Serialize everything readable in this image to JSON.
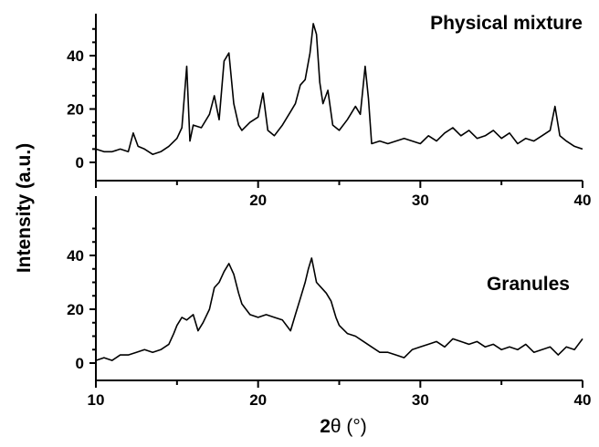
{
  "chart_data": [
    {
      "type": "line",
      "panel": "top",
      "label": "Physical mixture",
      "xlim": [
        10,
        40
      ],
      "ylim": [
        -2,
        55
      ],
      "x_ticks": [
        20,
        30,
        40
      ],
      "y_ticks": [
        0,
        20,
        40
      ],
      "grid": false,
      "series": [
        {
          "name": "Physical mixture",
          "x": [
            10,
            10.5,
            11,
            11.5,
            12,
            12.3,
            12.6,
            13,
            13.5,
            14,
            14.5,
            15,
            15.3,
            15.6,
            15.8,
            16,
            16.5,
            17,
            17.3,
            17.6,
            17.9,
            18.2,
            18.5,
            18.8,
            19,
            19.5,
            20,
            20.3,
            20.6,
            21,
            21.5,
            22,
            22.3,
            22.6,
            22.9,
            23.2,
            23.4,
            23.6,
            23.8,
            24,
            24.3,
            24.6,
            25,
            25.5,
            26,
            26.3,
            26.6,
            26.8,
            27,
            27.5,
            28,
            29,
            30,
            30.5,
            31,
            31.5,
            32,
            32.5,
            33,
            33.5,
            34,
            34.5,
            35,
            35.5,
            36,
            36.5,
            37,
            37.5,
            38,
            38.3,
            38.6,
            39,
            39.5,
            40
          ],
          "values": [
            5,
            4,
            4,
            5,
            4,
            11,
            6,
            5,
            3,
            4,
            6,
            9,
            13,
            36,
            8,
            14,
            13,
            18,
            25,
            16,
            38,
            41,
            22,
            14,
            12,
            15,
            17,
            26,
            12,
            10,
            14,
            19,
            22,
            29,
            31,
            41,
            52,
            48,
            30,
            22,
            27,
            14,
            12,
            16,
            21,
            18,
            36,
            24,
            7,
            8,
            7,
            9,
            7,
            10,
            8,
            11,
            13,
            10,
            12,
            9,
            10,
            12,
            9,
            11,
            7,
            9,
            8,
            10,
            12,
            21,
            10,
            8,
            6,
            5
          ]
        }
      ]
    },
    {
      "type": "line",
      "panel": "bottom",
      "label": "Granules",
      "xlim": [
        10,
        40
      ],
      "ylim": [
        -2,
        55
      ],
      "x_ticks": [
        10,
        20,
        30,
        40
      ],
      "y_ticks": [
        0,
        20,
        40
      ],
      "grid": false,
      "xlabel": "2θ (°)",
      "series": [
        {
          "name": "Granules",
          "x": [
            10,
            10.5,
            11,
            11.5,
            12,
            12.5,
            13,
            13.5,
            14,
            14.5,
            14.8,
            15,
            15.3,
            15.6,
            16,
            16.3,
            16.6,
            17,
            17.3,
            17.6,
            17.9,
            18.2,
            18.5,
            18.8,
            19,
            19.5,
            20,
            20.5,
            21,
            21.5,
            22,
            22.3,
            22.6,
            22.9,
            23.1,
            23.3,
            23.6,
            23.9,
            24.2,
            24.5,
            24.8,
            25,
            25.5,
            26,
            26.5,
            27,
            27.5,
            28,
            28.5,
            29,
            29.5,
            30,
            30.5,
            31,
            31.5,
            32,
            32.5,
            33,
            33.5,
            34,
            34.5,
            35,
            35.5,
            36,
            36.5,
            37,
            37.5,
            38,
            38.5,
            39,
            39.5,
            40
          ],
          "values": [
            1,
            2,
            1,
            3,
            3,
            4,
            5,
            4,
            5,
            7,
            11,
            14,
            17,
            16,
            18,
            12,
            15,
            20,
            28,
            30,
            34,
            37,
            33,
            26,
            22,
            18,
            17,
            18,
            17,
            16,
            12,
            18,
            24,
            30,
            35,
            39,
            30,
            28,
            26,
            23,
            17,
            14,
            11,
            10,
            8,
            6,
            4,
            4,
            3,
            2,
            5,
            6,
            7,
            8,
            6,
            9,
            8,
            7,
            8,
            6,
            7,
            5,
            6,
            5,
            7,
            4,
            5,
            6,
            3,
            6,
            5,
            9
          ]
        }
      ]
    }
  ],
  "axes": {
    "ylabel": "Intensity (a.u.)",
    "xlabel_main": "2",
    "xlabel_theta": "θ",
    "xlabel_unit": " (°)"
  }
}
